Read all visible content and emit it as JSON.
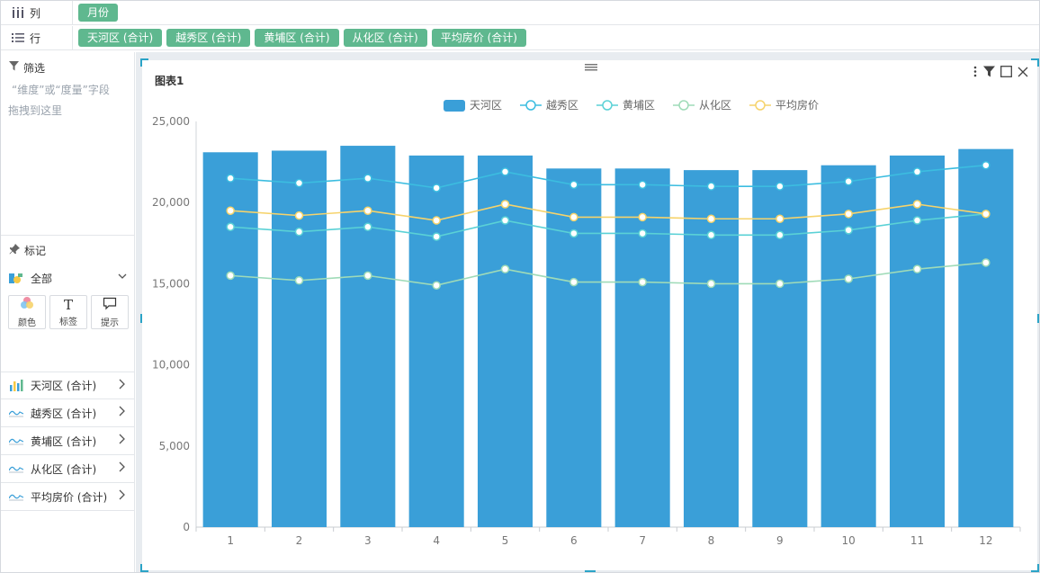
{
  "shelves": {
    "columns": {
      "label": "列",
      "icon": "columns-icon",
      "pills": [
        "月份"
      ]
    },
    "rows": {
      "label": "行",
      "icon": "rows-icon",
      "pills": [
        "天河区 (合计)",
        "越秀区 (合计)",
        "黄埔区 (合计)",
        "从化区 (合计)",
        "平均房价 (合计)"
      ]
    }
  },
  "filter": {
    "title": "筛选",
    "hint_line1": "“维度”或“度量”字段",
    "hint_line2": "拖拽到这里"
  },
  "marks": {
    "title": "标记",
    "all_label": "全部",
    "buttons": [
      {
        "label": "颜色",
        "icon": "color-palette-icon"
      },
      {
        "label": "标签",
        "icon": "text-label-icon"
      },
      {
        "label": "提示",
        "icon": "tooltip-bubble-icon"
      }
    ],
    "series": [
      {
        "label": "天河区 (合计)",
        "icon": "bar-chart-icon"
      },
      {
        "label": "越秀区 (合计)",
        "icon": "line-chart-icon"
      },
      {
        "label": "黄埔区 (合计)",
        "icon": "line-chart-icon"
      },
      {
        "label": "从化区 (合计)",
        "icon": "line-chart-icon"
      },
      {
        "label": "平均房价 (合计)",
        "icon": "line-chart-icon"
      }
    ]
  },
  "chart_card": {
    "title": "图表1",
    "toolbar_icons": [
      "more-vertical-icon",
      "filter-icon",
      "maximize-icon",
      "close-icon"
    ]
  },
  "chart_data": {
    "type": "bar",
    "title": "图表1",
    "categories": [
      "1",
      "2",
      "3",
      "4",
      "5",
      "6",
      "7",
      "8",
      "9",
      "10",
      "11",
      "12"
    ],
    "ylim": [
      0,
      25000
    ],
    "yticks": [
      0,
      5000,
      10000,
      15000,
      20000,
      25000
    ],
    "ytick_labels": [
      "0",
      "5,000",
      "10,000",
      "15,000",
      "20,000",
      "25,000"
    ],
    "grid": false,
    "legend_position": "top-center",
    "series": [
      {
        "name": "天河区",
        "type": "bar",
        "color": "#3a9fd8",
        "values": [
          23100,
          23200,
          23500,
          22900,
          22900,
          22100,
          22100,
          22000,
          22000,
          22300,
          22900,
          23300
        ]
      },
      {
        "name": "越秀区",
        "type": "line",
        "color": "#3cbde0",
        "values": [
          21500,
          21200,
          21500,
          20900,
          21900,
          21100,
          21100,
          21000,
          21000,
          21300,
          21900,
          22300
        ]
      },
      {
        "name": "黄埔区",
        "type": "line",
        "color": "#5ad1d6",
        "values": [
          18500,
          18200,
          18500,
          17900,
          18900,
          18100,
          18100,
          18000,
          18000,
          18300,
          18900,
          19300
        ]
      },
      {
        "name": "从化区",
        "type": "line",
        "color": "#9fdbb8",
        "values": [
          15500,
          15200,
          15500,
          14900,
          15900,
          15100,
          15100,
          15000,
          15000,
          15300,
          15900,
          16300
        ]
      },
      {
        "name": "平均房价",
        "type": "line",
        "color": "#f6d36b",
        "values": [
          19500,
          19200,
          19500,
          18900,
          19900,
          19100,
          19100,
          19000,
          19000,
          19300,
          19900,
          19300
        ]
      }
    ]
  }
}
